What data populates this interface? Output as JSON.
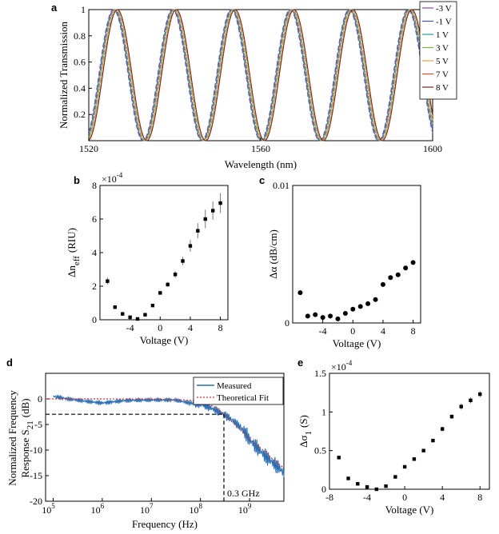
{
  "chart_data": [
    {
      "panel": "a",
      "type": "line",
      "xlabel": "Wavelength (nm)",
      "ylabel": "Normalized Transmission",
      "xlim": [
        1520,
        1600
      ],
      "ylim": [
        0,
        1
      ],
      "xticks": [
        1520,
        1560,
        1600
      ],
      "xtick_labels": [
        "1520",
        "1560",
        "1600"
      ],
      "yticks": [
        0.2,
        0.4,
        0.6,
        0.8,
        1
      ],
      "ytick_labels": [
        "0.2",
        "0.4",
        "0.6",
        "0.8",
        "1"
      ],
      "period_nm": 13.7,
      "peak_wavelengths_nm": [
        1526.2,
        1539.9,
        1553.6,
        1567.3,
        1581.0,
        1594.7
      ],
      "peak_shift_nm_per_V": 0.085,
      "legend_position": "top-right",
      "series": [
        {
          "name": "-3 V",
          "voltage": -3,
          "color": "#8e44ad"
        },
        {
          "name": "-1 V",
          "voltage": -1,
          "color": "#3f51b5"
        },
        {
          "name": "1 V",
          "voltage": 1,
          "color": "#1f9aa0"
        },
        {
          "name": "3 V",
          "voltage": 3,
          "color": "#7cb342"
        },
        {
          "name": "5 V",
          "voltage": 5,
          "color": "#f2a33a"
        },
        {
          "name": "7 V",
          "voltage": 7,
          "color": "#d84d2a"
        },
        {
          "name": "8 V",
          "voltage": 8,
          "color": "#7b1f1f"
        }
      ]
    },
    {
      "panel": "b",
      "type": "scatter",
      "xlabel": "Voltage (V)",
      "ylabel": "Δn",
      "ylabel_sub": "eff",
      "ylabel_unit": "(RIU)",
      "multiplier": "×10",
      "multiplier_exp": "-4",
      "xlim": [
        -8,
        9
      ],
      "ylim": [
        0,
        8
      ],
      "xticks": [
        -4,
        0,
        4,
        8
      ],
      "xtick_labels": [
        "-4",
        "0",
        "4",
        "8"
      ],
      "yticks": [
        0,
        2,
        4,
        6,
        8
      ],
      "ytick_labels": [
        "0",
        "2",
        "4",
        "6",
        "8"
      ],
      "x": [
        -7,
        -6,
        -5,
        -4,
        -3,
        -2,
        -1,
        0,
        1,
        2,
        3,
        4,
        5,
        6,
        7,
        8
      ],
      "y": [
        2.3,
        0.75,
        0.35,
        0.15,
        0.05,
        0.3,
        0.85,
        1.6,
        2.1,
        2.7,
        3.5,
        4.4,
        5.3,
        6.0,
        6.5,
        6.95
      ],
      "yerr": [
        0.2,
        0.05,
        0.05,
        0.05,
        0.05,
        0.1,
        0.1,
        0.1,
        0.15,
        0.2,
        0.25,
        0.35,
        0.45,
        0.55,
        0.55,
        0.6
      ]
    },
    {
      "panel": "c",
      "type": "scatter",
      "xlabel": "Voltage (V)",
      "ylabel": "Δα  (dB/cm)",
      "xlim": [
        -8,
        9
      ],
      "ylim": [
        0,
        0.01
      ],
      "xticks": [
        -4,
        0,
        4,
        8
      ],
      "xtick_labels": [
        "-4",
        "0",
        "4",
        "8"
      ],
      "yticks": [
        0,
        0.01
      ],
      "ytick_labels": [
        "0",
        "0.01"
      ],
      "x": [
        -7,
        -6,
        -5,
        -4,
        -3,
        -2,
        -1,
        0,
        1,
        2,
        3,
        4,
        5,
        6,
        7,
        8
      ],
      "y": [
        0.0022,
        0.0005,
        0.0006,
        0.0004,
        0.0005,
        0.0003,
        0.0007,
        0.001,
        0.0012,
        0.0014,
        0.0017,
        0.0028,
        0.0033,
        0.0035,
        0.004,
        0.0044
      ]
    },
    {
      "panel": "d",
      "type": "line",
      "xlabel": "Frequency (Hz)",
      "ylabel_line1": "Normalized Frequency",
      "ylabel_line2": "Response S",
      "ylabel_sub": "21",
      "ylabel_unit": "(dB)",
      "xscale": "log",
      "xlim": [
        70000,
        5000000000
      ],
      "ylim": [
        -20,
        5
      ],
      "xtick_exps": [
        5,
        6,
        7,
        8,
        9
      ],
      "xtick_base": "10",
      "yticks": [
        -20,
        -15,
        -10,
        -5,
        0
      ],
      "ytick_labels": [
        "-20",
        "-15",
        "-10",
        "-5",
        "0"
      ],
      "annotation": "0.3 GHz",
      "cutoff_hz": 300000000,
      "cutoff_db": -3,
      "legend_position": "top-right",
      "series": [
        {
          "name": "Measured",
          "color": "#2a6fb5",
          "style": "solid",
          "x": [
            100000,
            200000,
            500000,
            1000000,
            3000000,
            10000000,
            30000000,
            60000000,
            100000000,
            150000000,
            200000000,
            300000000,
            500000000,
            800000000,
            1000000000,
            2000000000,
            3000000000,
            4000000000,
            5000000000
          ],
          "y": [
            0.5,
            0,
            -0.5,
            -0.8,
            -0.3,
            -0.2,
            -0.2,
            -0.8,
            -1.0,
            -1.6,
            -2.2,
            -3.0,
            -4.5,
            -6.5,
            -8.0,
            -11.0,
            -12.5,
            -13.5,
            -14.5
          ]
        },
        {
          "name": "Theoretical Fit",
          "color": "#d33",
          "style": "dotted",
          "x": [
            70000,
            1000000,
            10000000,
            50000000,
            100000000,
            200000000,
            300000000,
            500000000,
            1000000000,
            2000000000,
            3000000000,
            5000000000
          ],
          "y": [
            0,
            0,
            -0.05,
            -0.2,
            -0.5,
            -1.6,
            -3.0,
            -5.0,
            -7.8,
            -10.2,
            -11.8,
            -13.5
          ]
        }
      ]
    },
    {
      "panel": "e",
      "type": "scatter",
      "xlabel": "Voltage (V)",
      "ylabel": "Δσ",
      "ylabel_sub": "1",
      "ylabel_unit": "(S)",
      "multiplier": "×10",
      "multiplier_exp": "-4",
      "xlim": [
        -8,
        9
      ],
      "ylim": [
        0,
        1.5
      ],
      "xticks": [
        -8,
        -4,
        0,
        4,
        8
      ],
      "xtick_labels": [
        "-8",
        "-4",
        "0",
        "4",
        "8"
      ],
      "yticks": [
        0,
        0.5,
        1,
        1.5
      ],
      "ytick_labels": [
        "0",
        "0.5",
        "1",
        "1.5"
      ],
      "x": [
        -7,
        -6,
        -5,
        -4,
        -3,
        -2,
        -1,
        0,
        1,
        2,
        3,
        4,
        5,
        6,
        7,
        8
      ],
      "y": [
        0.41,
        0.14,
        0.07,
        0.03,
        0.0,
        0.04,
        0.16,
        0.29,
        0.39,
        0.5,
        0.63,
        0.78,
        0.94,
        1.07,
        1.15,
        1.23
      ],
      "yerr": [
        0.02,
        0.01,
        0.01,
        0.01,
        0.01,
        0.01,
        0.01,
        0.02,
        0.02,
        0.02,
        0.02,
        0.03,
        0.03,
        0.04,
        0.04,
        0.04
      ]
    }
  ]
}
